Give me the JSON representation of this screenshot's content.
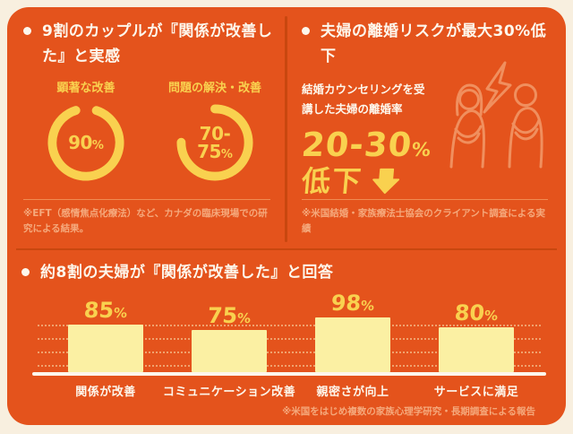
{
  "colors": {
    "page_bg": "#F8EFDF",
    "card_bg": "#E4531C",
    "divider_dark": "#C8470F",
    "divider_light": "#F08B52",
    "yellow": "#F9D14F",
    "pale_yellow": "#FBF0A3",
    "text_white": "#FDF7EC",
    "footnote_peach": "#F5A97C",
    "icon_outline": "#F08F5E"
  },
  "sections": {
    "improvement": {
      "heading": "9割のカップルが『関係が改善した』と実感",
      "footnote": "※EFT（感情焦点化療法）など、カナダの臨床現場での研究による結果。"
    },
    "divorce": {
      "heading": "夫婦の離婚リスクが最大30%低下",
      "sub_label": "結婚カウンセリングを受講した夫婦の離婚率",
      "stat_value": "20-30",
      "stat_unit": "%",
      "stat_caption": "低下",
      "footnote": "※米国結婚・家族療法士協会のクライアント調査による実績"
    },
    "survey": {
      "heading": "約8割の夫婦が『関係が改善した』と回答",
      "footnote": "※米国をはじめ複数の家族心理学研究・長期調査による報告"
    }
  },
  "chart_data": [
    {
      "type": "donut",
      "title": "顕著な改善",
      "percent": 90,
      "value_label": "90",
      "unit": "%",
      "arc_start_deg": -72,
      "ring_color": "#F9D14F"
    },
    {
      "type": "donut",
      "title": "問題の解決・改善",
      "percent": 75,
      "value_label": "70-75",
      "unit": "%",
      "arc_start_deg": -90,
      "ring_color": "#F9D14F"
    },
    {
      "type": "bar",
      "title": "約8割の夫婦が『関係が改善した』と回答",
      "categories": [
        "関係が改善",
        "コミュニケーション改善",
        "親密さが向上",
        "サービスに満足"
      ],
      "values": [
        85,
        75,
        98,
        80
      ],
      "unit": "%",
      "ylim": [
        0,
        100
      ],
      "grid": true,
      "gridline_count": 4,
      "bar_color": "#FBF0A3"
    }
  ]
}
